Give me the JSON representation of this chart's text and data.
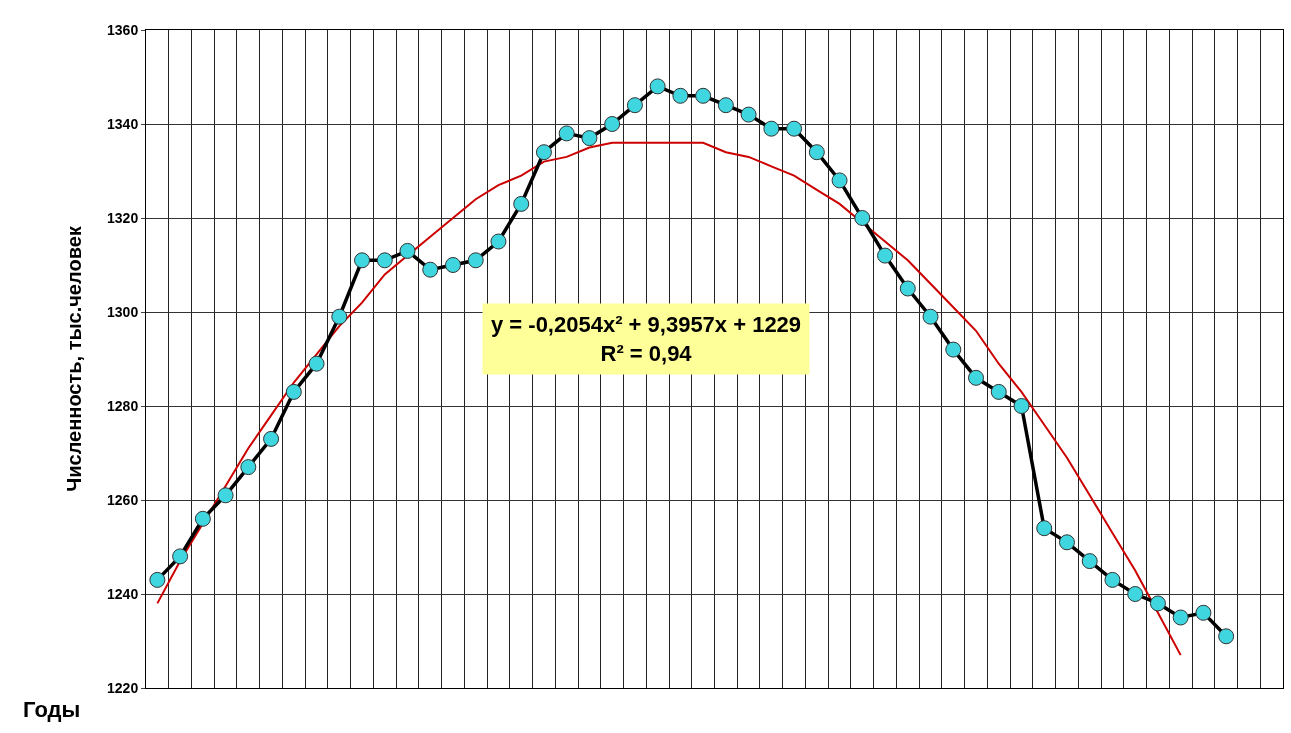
{
  "chart_data": {
    "type": "line",
    "xlabel": "Годы",
    "ylabel": "Численность, тыс.человек",
    "categories": [
      null,
      null,
      null,
      null,
      null,
      null,
      null,
      null,
      null,
      null,
      null,
      null,
      null,
      null,
      null,
      null,
      null,
      null,
      null,
      null,
      null,
      null,
      null,
      null,
      null,
      null,
      null,
      null,
      null,
      null,
      null,
      null,
      null,
      null,
      null,
      null,
      null,
      null,
      null,
      null,
      null,
      null,
      null,
      null,
      null,
      null,
      null,
      null,
      null,
      null
    ],
    "series": [
      {
        "color": "#000000",
        "colors": [
          "#3fd6e0",
          "#3fd6e0",
          "#3fd6e0",
          "#3fd6e0",
          "#3fd6e0",
          "#3fd6e0",
          "#3fd6e0",
          "#3fd6e0",
          "#3fd6e0",
          "#3fd6e0",
          "#3fd6e0",
          "#3fd6e0",
          "#3fd6e0",
          "#3fd6e0",
          "#3fd6e0",
          "#3fd6e0",
          "#3fd6e0",
          "#3fd6e0",
          "#3fd6e0",
          "#3fd6e0",
          "#3fd6e0",
          "#3fd6e0",
          "#3fd6e0",
          "#3fd6e0",
          "#3fd6e0",
          "#3fd6e0",
          "#3fd6e0",
          "#3fd6e0",
          "#3fd6e0",
          "#3fd6e0",
          "#3fd6e0",
          "#3fd6e0",
          "#3fd6e0",
          "#3fd6e0",
          "#3fd6e0",
          "#3fd6e0",
          "#3fd6e0",
          "#3fd6e0",
          "#3fd6e0",
          "#3fd6e0",
          "#3fd6e0",
          "#3fd6e0",
          "#3fd6e0",
          "#3fd6e0",
          "#3fd6e0",
          "#3fd6e0",
          "#3fd6e0",
          "#3fd6e0",
          null,
          null
        ],
        "marker": "circle",
        "values": [
          1243,
          1248,
          1256,
          1261,
          1267,
          1273,
          1283,
          1289,
          1299,
          1311,
          1311,
          1313,
          1309,
          1310,
          1311,
          1315,
          1323,
          1334,
          1338,
          1337,
          1340,
          1344,
          1348,
          1346,
          1346,
          1344,
          1342,
          1339,
          1339,
          1334,
          1328,
          1320,
          1312,
          1305,
          1299,
          1292,
          1286,
          1283,
          1280,
          1254,
          1251,
          1247,
          1243,
          1240,
          1238,
          1235,
          1236,
          1231,
          null,
          null
        ]
      },
      {
        "type": "line",
        "color": "#cc0000",
        "marker": "none",
        "values": [
          1238,
          1247,
          1255,
          1263,
          1271,
          1278,
          1285,
          1291,
          1297,
          1302,
          1308,
          1312,
          1316,
          1320,
          1324,
          1327,
          1329,
          1332,
          1333,
          1335,
          1336,
          1336,
          1336,
          1336,
          1336,
          1334,
          1333,
          1331,
          1329,
          1326,
          1323,
          1319,
          1315,
          1311,
          1306,
          1301,
          1296,
          1289,
          1283,
          1276,
          1269,
          1261,
          1253,
          1245,
          1236,
          1227,
          null,
          null,
          null,
          null
        ]
      }
    ],
    "ylim": [
      1220,
      1360
    ],
    "yticks": [
      1220,
      1240,
      1260,
      1280,
      1300,
      1320,
      1340,
      1360
    ],
    "grid": true,
    "annotations": [
      "y = -0,2054x² + 9,3957x + 1229\nR² = 0,94"
    ]
  }
}
